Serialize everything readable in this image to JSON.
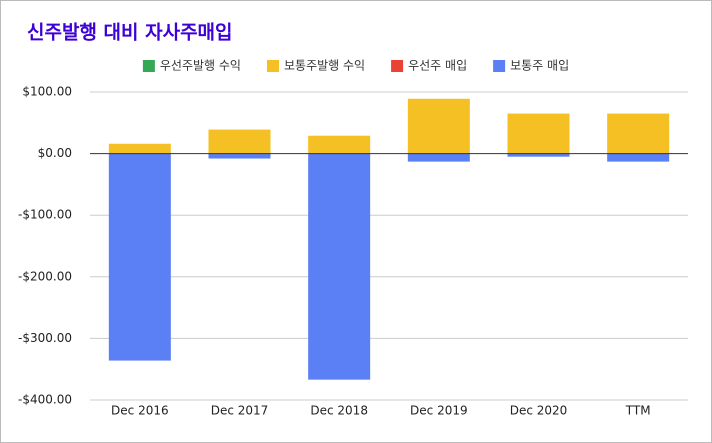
{
  "chart_data": {
    "type": "bar",
    "stacked": true,
    "title": "신주발행 대비 자사주매입",
    "categories": [
      "Dec 2016",
      "Dec 2017",
      "Dec 2018",
      "Dec 2019",
      "Dec 2020",
      "TTM"
    ],
    "series": [
      {
        "name": "우선주발행 수익",
        "color": "#34a853",
        "values": [
          0,
          0,
          0,
          0,
          0,
          0
        ]
      },
      {
        "name": "보통주발행 수익",
        "color": "#f4c023",
        "values": [
          16,
          39,
          29,
          89,
          65,
          65
        ]
      },
      {
        "name": "우선주 매입",
        "color": "#ea4335",
        "values": [
          0,
          0,
          0,
          0,
          0,
          0
        ]
      },
      {
        "name": "보통주 매입",
        "color": "#5b7ff5",
        "values": [
          -336,
          -8,
          -367,
          -13,
          -5,
          -13
        ]
      }
    ],
    "ylim": [
      -400,
      100
    ],
    "yticks": [
      {
        "value": -400,
        "label": "-$400.00"
      },
      {
        "value": -300,
        "label": "-$300.00"
      },
      {
        "value": -200,
        "label": "-$200.00"
      },
      {
        "value": -100,
        "label": "-$100.00"
      },
      {
        "value": 0,
        "label": "$0.00"
      },
      {
        "value": 100,
        "label": "$100.00"
      }
    ],
    "grid": true,
    "legend": "top"
  }
}
